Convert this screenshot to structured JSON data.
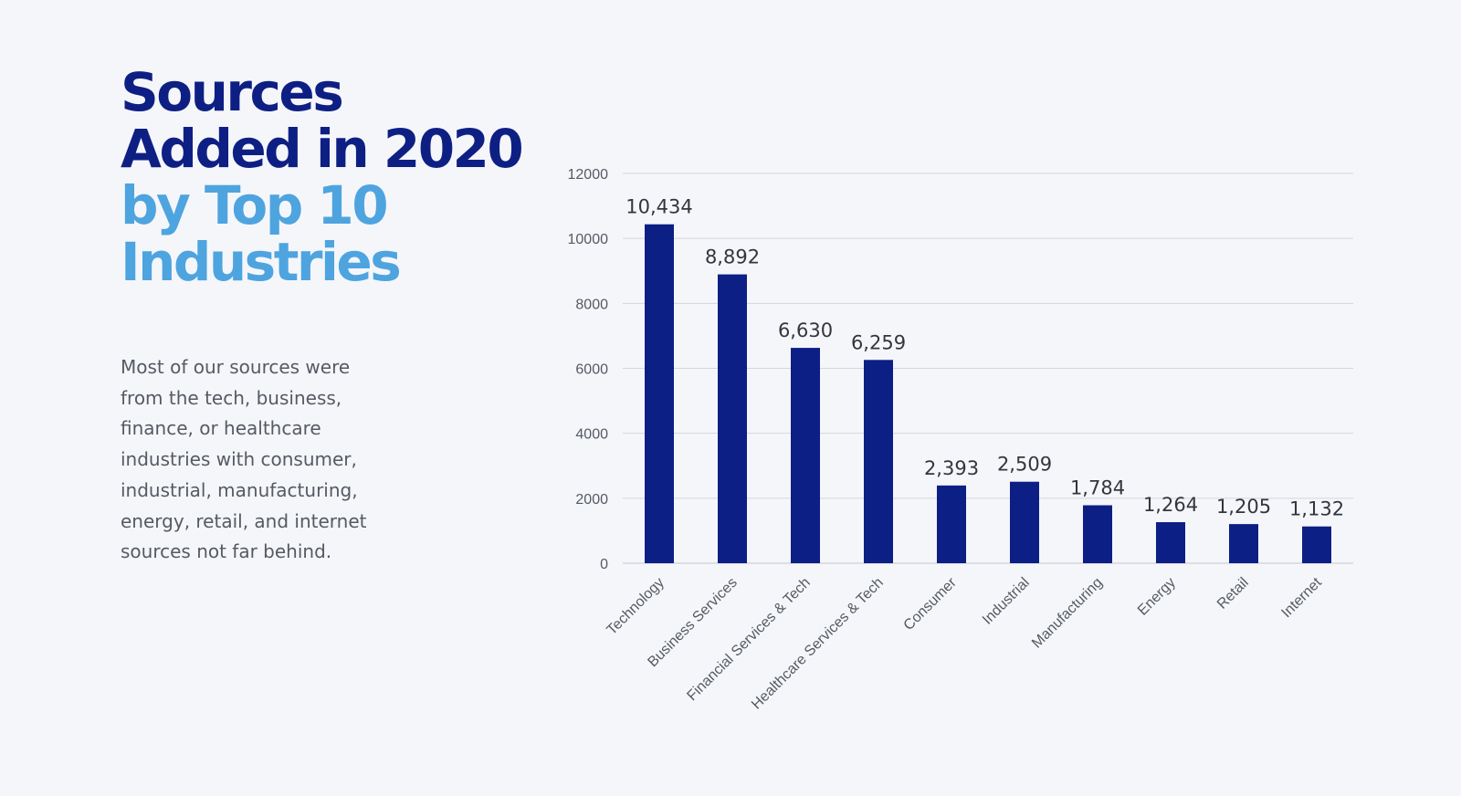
{
  "heading": {
    "line1": "Sources",
    "line2": "Added in 2020",
    "line3": "by Top 10",
    "line4": "Industries"
  },
  "description": "Most of our sources were from the tech, business, finance, or healthcare industries with consumer, industrial, manufacturing, energy, retail, and internet sources not far behind.",
  "colors": {
    "bar": "#0c1f85",
    "title_dark": "#0e1f84",
    "title_light": "#4ea4df",
    "background": "#f5f6fa"
  },
  "chart_data": {
    "type": "bar",
    "categories": [
      "Technology",
      "Business Services",
      "Financial Services & Tech",
      "Healthcare Services & Tech",
      "Consumer",
      "Industrial",
      "Manufacturing",
      "Energy",
      "Retail",
      "Internet"
    ],
    "values": [
      10434,
      8892,
      6630,
      6259,
      2393,
      2509,
      1784,
      1264,
      1205,
      1132
    ],
    "data_labels": [
      "10,434",
      "8,892",
      "6,630",
      "6,259",
      "2,393",
      "2,509",
      "1,784",
      "1,264",
      "1,205",
      "1,132"
    ],
    "ylim": [
      0,
      12000
    ],
    "yticks": [
      0,
      2000,
      4000,
      6000,
      8000,
      10000,
      12000
    ],
    "grid": true,
    "legend": "none",
    "title": "",
    "xlabel": "",
    "ylabel": ""
  }
}
